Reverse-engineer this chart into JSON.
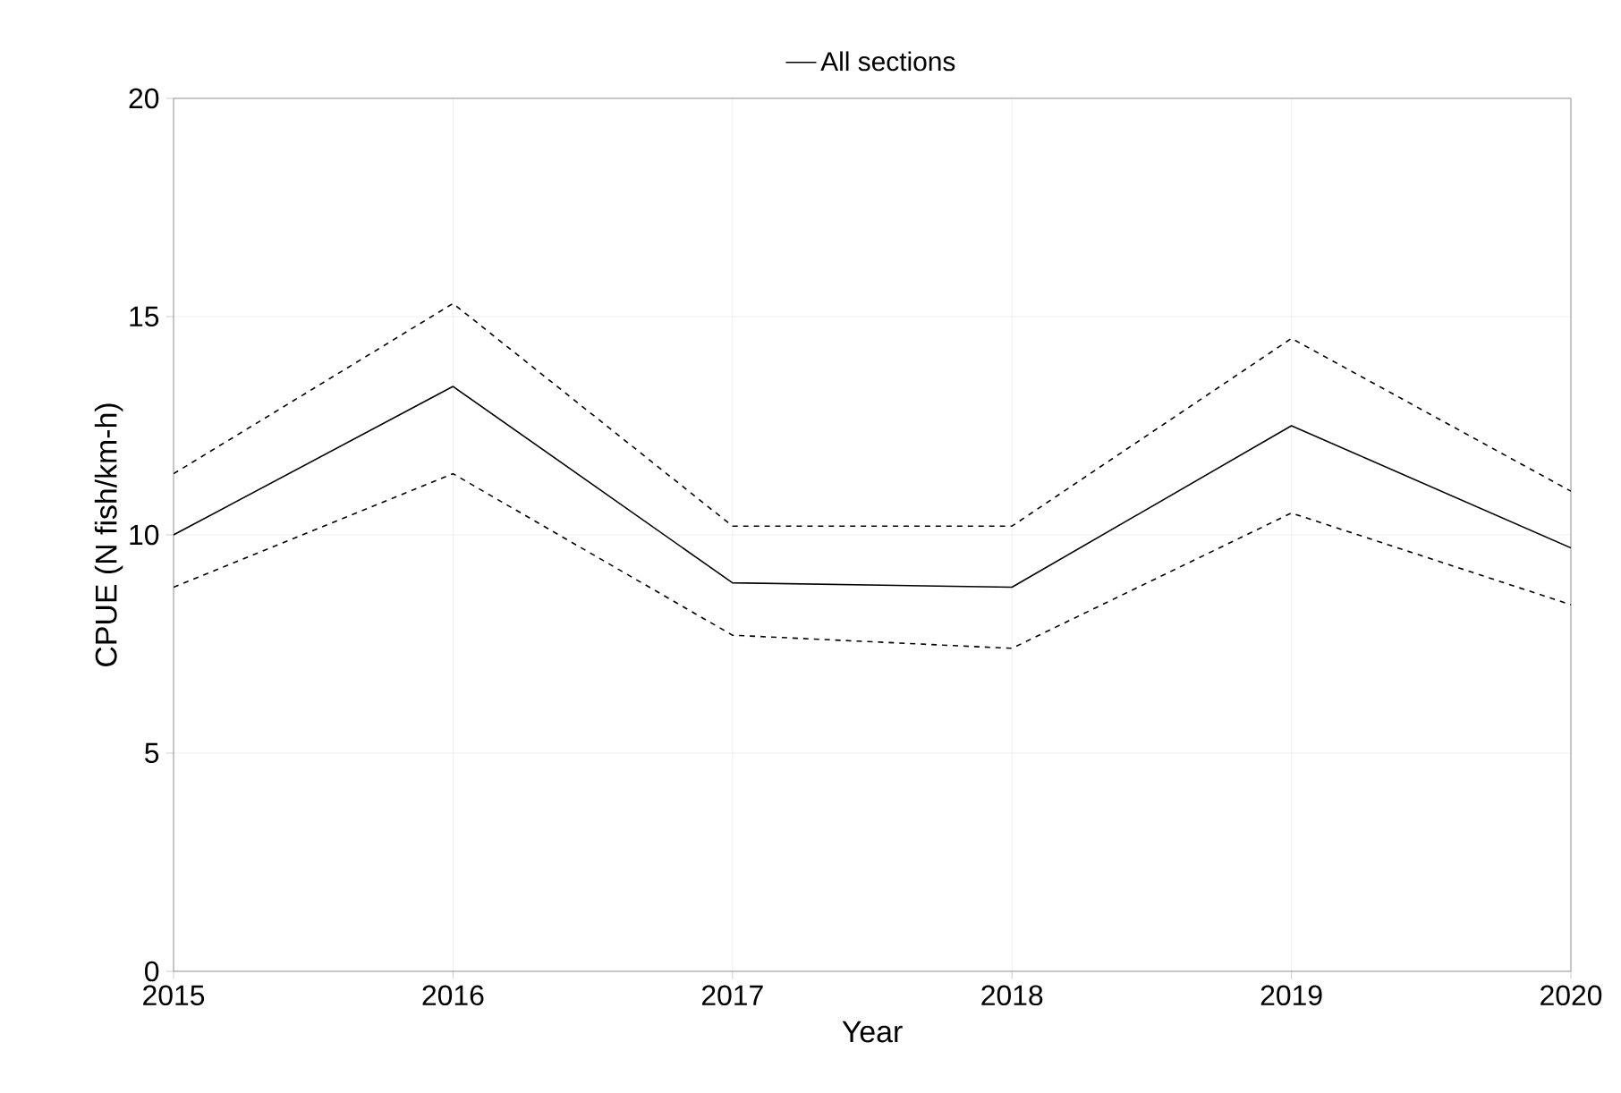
{
  "chart_data": {
    "type": "line",
    "xlabel": "Year",
    "ylabel": "CPUE (N fish/km-h)",
    "x": [
      2015,
      2016,
      2017,
      2018,
      2019,
      2020
    ],
    "series": [
      {
        "name": "All sections",
        "color": "#000000",
        "values": [
          10.0,
          13.4,
          8.9,
          8.8,
          12.5,
          9.7
        ]
      },
      {
        "color": "#000000",
        "line_style": "dashed",
        "values": [
          11.4,
          15.3,
          10.2,
          10.2,
          14.5,
          11.0
        ]
      },
      {
        "color": "#000000",
        "line_style": "dashed",
        "values": [
          8.8,
          11.4,
          7.7,
          7.4,
          10.5,
          8.4
        ]
      }
    ],
    "xlim": [
      2015,
      2020
    ],
    "xticks": [
      2015,
      2016,
      2017,
      2018,
      2019,
      2020
    ],
    "ylim": [
      0,
      20
    ],
    "yticks": [
      0,
      5,
      10,
      15,
      20
    ],
    "grid": true,
    "legend": "top",
    "marker": "none",
    "line_style": "solid"
  }
}
